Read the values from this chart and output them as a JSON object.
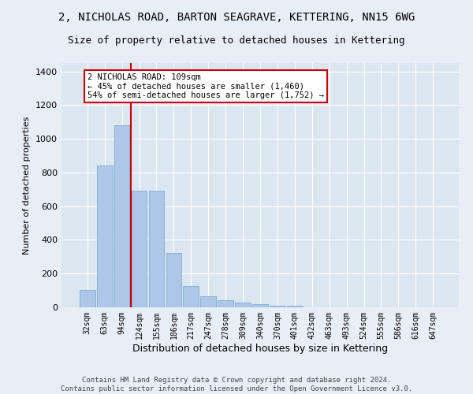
{
  "title_line1": "2, NICHOLAS ROAD, BARTON SEAGRAVE, KETTERING, NN15 6WG",
  "title_line2": "Size of property relative to detached houses in Kettering",
  "xlabel": "Distribution of detached houses by size in Kettering",
  "ylabel": "Number of detached properties",
  "footer_line1": "Contains HM Land Registry data © Crown copyright and database right 2024.",
  "footer_line2": "Contains public sector information licensed under the Open Government Licence v3.0.",
  "categories": [
    "32sqm",
    "63sqm",
    "94sqm",
    "124sqm",
    "155sqm",
    "186sqm",
    "217sqm",
    "247sqm",
    "278sqm",
    "309sqm",
    "340sqm",
    "370sqm",
    "401sqm",
    "432sqm",
    "463sqm",
    "493sqm",
    "524sqm",
    "555sqm",
    "586sqm",
    "616sqm",
    "647sqm"
  ],
  "values": [
    105,
    840,
    1080,
    690,
    690,
    325,
    125,
    65,
    40,
    30,
    18,
    10,
    10,
    0,
    0,
    0,
    0,
    0,
    0,
    0,
    0
  ],
  "bar_color": "#aec6e8",
  "bar_edge_color": "#7aadd4",
  "vline_pos": 2.5,
  "vline_color": "#cc0000",
  "annotation_text": "2 NICHOLAS ROAD: 109sqm\n← 45% of detached houses are smaller (1,460)\n54% of semi-detached houses are larger (1,752) →",
  "annotation_box_color": "#ffffff",
  "annotation_box_edge_color": "#cc0000",
  "ylim": [
    0,
    1450
  ],
  "yticks": [
    0,
    200,
    400,
    600,
    800,
    1000,
    1200,
    1400
  ],
  "background_color": "#e8eef5",
  "plot_bg_color": "#dce6f0",
  "grid_color": "#ffffff",
  "title_fontsize": 10,
  "subtitle_fontsize": 9,
  "footer_fontsize": 6.5,
  "ylabel_fontsize": 8,
  "xlabel_fontsize": 9
}
